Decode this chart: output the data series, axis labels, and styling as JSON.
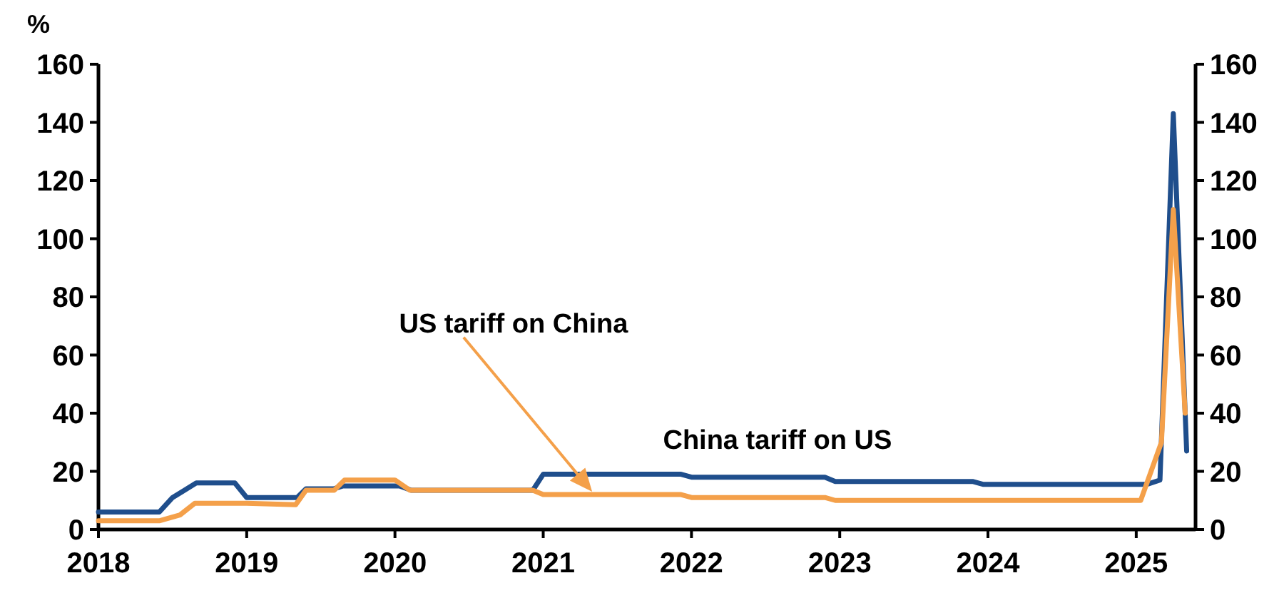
{
  "chart_data": {
    "type": "line",
    "ylabel": "%",
    "xlim": [
      2018,
      2025.4
    ],
    "xticks": [
      {
        "value": 2018,
        "label": "2018"
      },
      {
        "value": 2019,
        "label": "2019"
      },
      {
        "value": 2020,
        "label": "2020"
      },
      {
        "value": 2021,
        "label": "2021"
      },
      {
        "value": 2022,
        "label": "2022"
      },
      {
        "value": 2023,
        "label": "2023"
      },
      {
        "value": 2024,
        "label": "2024"
      },
      {
        "value": 2025,
        "label": "2025"
      }
    ],
    "ylim": [
      0,
      160
    ],
    "yticks": [
      0,
      20,
      40,
      60,
      80,
      100,
      120,
      140,
      160
    ],
    "y2lim": [
      0,
      160
    ],
    "y2ticks": [
      0,
      20,
      40,
      60,
      80,
      100,
      120,
      140,
      160
    ],
    "grid": false,
    "annotations": [
      "US tariff on China",
      "China tariff on US"
    ],
    "series": [
      {
        "color": "#1f4e8c",
        "x": [
          2018,
          2018.41,
          2018.5,
          2018.66,
          2018.92,
          2019.0,
          2019.34,
          2019.4,
          2019.59,
          2019.65,
          2020.03,
          2020.11,
          2020.93,
          2021.0,
          2021.93,
          2022.0,
          2022.9,
          2022.97,
          2023.9,
          2023.97,
          2025.07,
          2025.16,
          2025.25,
          2025.33,
          2025.34
        ],
        "values": [
          6,
          6,
          11,
          16,
          16,
          11,
          11,
          14,
          14,
          15,
          15,
          13.5,
          13.5,
          19,
          19,
          18,
          18,
          16.5,
          16.5,
          15.5,
          15.5,
          17,
          143,
          40,
          27
        ]
      },
      {
        "color": "#f4a04a",
        "x": [
          2018,
          2018.41,
          2018.55,
          2018.65,
          2019.0,
          2019.33,
          2019.4,
          2019.59,
          2019.66,
          2020.0,
          2020.1,
          2020.93,
          2021.0,
          2021.93,
          2022.0,
          2022.9,
          2022.97,
          2025.03,
          2025.17,
          2025.25,
          2025.33
        ],
        "values": [
          3,
          3,
          5,
          9,
          9,
          8.5,
          13.5,
          13.5,
          17,
          17,
          13.5,
          13.5,
          12,
          12,
          11,
          11,
          10,
          10,
          30,
          110,
          40
        ]
      }
    ]
  }
}
